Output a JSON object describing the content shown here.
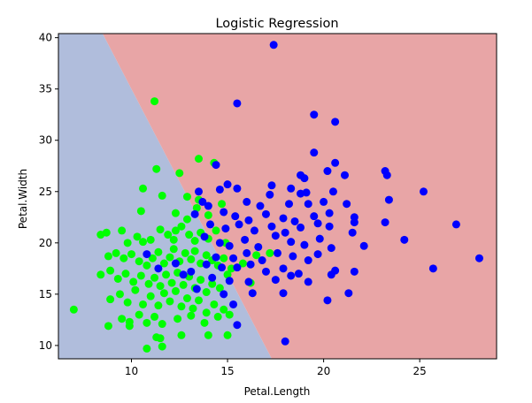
{
  "chart_data": {
    "type": "scatter",
    "title": "Logistic Regression",
    "xlabel": "Petal.Length",
    "ylabel": "Petal.Width",
    "xlim": [
      6.2,
      29.0
    ],
    "ylim": [
      8.7,
      40.4
    ],
    "xticks": [
      "10",
      "15",
      "20",
      "25"
    ],
    "yticks": [
      "10",
      "15",
      "20",
      "25",
      "30",
      "35",
      "40"
    ],
    "grid": false,
    "legend": "none",
    "decision_boundary": {
      "points": [
        [
          8.5,
          40.4
        ],
        [
          17.3,
          8.7
        ]
      ],
      "region_colors": {
        "left": "#b0bddc",
        "right": "#e8a5a6"
      }
    },
    "series": [
      {
        "color": "#00ff00",
        "points": [
          [
            11.2,
            33.8
          ],
          [
            11.3,
            27.2
          ],
          [
            12.5,
            26.8
          ],
          [
            13.5,
            28.2
          ],
          [
            14.3,
            27.8
          ],
          [
            10.6,
            25.3
          ],
          [
            11.6,
            24.6
          ],
          [
            12.9,
            24.5
          ],
          [
            10.5,
            23.1
          ],
          [
            12.3,
            22.9
          ],
          [
            12.9,
            22.3
          ],
          [
            13.4,
            23.4
          ],
          [
            13.5,
            24.2
          ],
          [
            14.0,
            22.7
          ],
          [
            14.7,
            23.8
          ],
          [
            8.4,
            20.8
          ],
          [
            8.7,
            21.0
          ],
          [
            9.5,
            21.2
          ],
          [
            9.8,
            20.0
          ],
          [
            10.3,
            20.6
          ],
          [
            10.6,
            20.1
          ],
          [
            11.0,
            20.3
          ],
          [
            11.5,
            21.3
          ],
          [
            11.9,
            20.8
          ],
          [
            12.3,
            21.2
          ],
          [
            12.6,
            21.6
          ],
          [
            12.2,
            20.3
          ],
          [
            13.0,
            20.8
          ],
          [
            13.3,
            20.2
          ],
          [
            13.6,
            21.0
          ],
          [
            14.0,
            20.4
          ],
          [
            14.4,
            21.2
          ],
          [
            14.9,
            20.0
          ],
          [
            8.8,
            18.7
          ],
          [
            9.2,
            19.0
          ],
          [
            9.6,
            18.5
          ],
          [
            10.0,
            18.9
          ],
          [
            10.4,
            18.2
          ],
          [
            10.8,
            17.8
          ],
          [
            11.1,
            18.5
          ],
          [
            11.4,
            19.1
          ],
          [
            11.7,
            18.0
          ],
          [
            12.0,
            18.6
          ],
          [
            12.2,
            19.4
          ],
          [
            12.5,
            18.2
          ],
          [
            12.8,
            19.0
          ],
          [
            13.1,
            18.4
          ],
          [
            13.3,
            19.2
          ],
          [
            13.6,
            18.0
          ],
          [
            13.9,
            18.8
          ],
          [
            14.2,
            18.3
          ],
          [
            14.5,
            17.8
          ],
          [
            14.8,
            18.5
          ],
          [
            15.2,
            17.5
          ],
          [
            15.8,
            18.0
          ],
          [
            16.5,
            18.8
          ],
          [
            17.2,
            19.0
          ],
          [
            8.4,
            16.9
          ],
          [
            8.9,
            17.3
          ],
          [
            9.3,
            16.5
          ],
          [
            9.7,
            17.0
          ],
          [
            10.1,
            16.2
          ],
          [
            10.5,
            16.8
          ],
          [
            10.9,
            16.0
          ],
          [
            11.2,
            16.6
          ],
          [
            11.5,
            15.8
          ],
          [
            11.8,
            16.9
          ],
          [
            12.1,
            16.1
          ],
          [
            12.4,
            17.1
          ],
          [
            12.7,
            15.9
          ],
          [
            13.0,
            16.7
          ],
          [
            13.3,
            15.6
          ],
          [
            13.6,
            16.4
          ],
          [
            13.9,
            15.2
          ],
          [
            14.2,
            16.0
          ],
          [
            14.6,
            15.6
          ],
          [
            15.0,
            16.9
          ],
          [
            16.2,
            16.1
          ],
          [
            8.9,
            14.5
          ],
          [
            9.4,
            15.0
          ],
          [
            9.8,
            14.2
          ],
          [
            10.2,
            15.4
          ],
          [
            10.6,
            14.0
          ],
          [
            11.0,
            14.8
          ],
          [
            11.4,
            13.9
          ],
          [
            11.7,
            15.1
          ],
          [
            12.0,
            14.3
          ],
          [
            12.3,
            15.3
          ],
          [
            12.6,
            13.8
          ],
          [
            12.9,
            14.6
          ],
          [
            13.2,
            13.6
          ],
          [
            13.5,
            14.4
          ],
          [
            13.9,
            13.2
          ],
          [
            14.3,
            14.0
          ],
          [
            14.8,
            13.5
          ],
          [
            15.1,
            13.0
          ],
          [
            7.0,
            13.5
          ],
          [
            8.8,
            11.9
          ],
          [
            9.5,
            12.6
          ],
          [
            9.9,
            12.3
          ],
          [
            10.4,
            13.0
          ],
          [
            10.8,
            12.2
          ],
          [
            11.2,
            12.8
          ],
          [
            11.6,
            12.1
          ],
          [
            12.4,
            12.6
          ],
          [
            13.1,
            12.9
          ],
          [
            13.8,
            12.2
          ],
          [
            14.5,
            12.8
          ],
          [
            9.9,
            11.9
          ],
          [
            11.3,
            10.8
          ],
          [
            11.5,
            10.7
          ],
          [
            12.6,
            11.0
          ],
          [
            14.0,
            11.0
          ],
          [
            10.8,
            9.7
          ],
          [
            11.6,
            9.9
          ],
          [
            15.0,
            11.0
          ]
        ]
      },
      {
        "color": "#0000ff",
        "points": [
          [
            17.4,
            39.3
          ],
          [
            15.5,
            33.6
          ],
          [
            19.5,
            32.5
          ],
          [
            20.6,
            31.8
          ],
          [
            19.5,
            28.8
          ],
          [
            14.4,
            27.6
          ],
          [
            20.6,
            27.8
          ],
          [
            21.1,
            26.6
          ],
          [
            20.2,
            27.0
          ],
          [
            23.2,
            27.0
          ],
          [
            23.3,
            26.6
          ],
          [
            18.8,
            26.6
          ],
          [
            19.0,
            26.3
          ],
          [
            15.0,
            25.7
          ],
          [
            14.6,
            25.2
          ],
          [
            15.5,
            25.3
          ],
          [
            17.3,
            25.6
          ],
          [
            18.3,
            25.3
          ],
          [
            18.8,
            24.8
          ],
          [
            19.1,
            24.9
          ],
          [
            20.5,
            25.0
          ],
          [
            25.2,
            25.0
          ],
          [
            13.5,
            25.0
          ],
          [
            13.7,
            24.0
          ],
          [
            14.0,
            23.6
          ],
          [
            16.0,
            24.0
          ],
          [
            16.7,
            23.6
          ],
          [
            17.2,
            24.7
          ],
          [
            18.2,
            23.8
          ],
          [
            19.2,
            23.8
          ],
          [
            20.0,
            24.0
          ],
          [
            21.2,
            23.8
          ],
          [
            21.6,
            22.5
          ],
          [
            23.4,
            24.2
          ],
          [
            13.3,
            22.8
          ],
          [
            14.8,
            23.0
          ],
          [
            15.4,
            22.6
          ],
          [
            16.1,
            22.2
          ],
          [
            17.0,
            22.8
          ],
          [
            17.9,
            22.4
          ],
          [
            18.5,
            22.1
          ],
          [
            19.5,
            22.6
          ],
          [
            20.3,
            22.9
          ],
          [
            21.6,
            22.0
          ],
          [
            23.2,
            22.0
          ],
          [
            14.1,
            21.8
          ],
          [
            14.9,
            21.4
          ],
          [
            15.6,
            21.8
          ],
          [
            16.4,
            21.2
          ],
          [
            17.3,
            21.6
          ],
          [
            18.0,
            21.0
          ],
          [
            18.8,
            21.5
          ],
          [
            19.7,
            21.9
          ],
          [
            20.3,
            21.6
          ],
          [
            21.5,
            21.0
          ],
          [
            26.9,
            21.8
          ],
          [
            13.8,
            20.6
          ],
          [
            14.6,
            20.0
          ],
          [
            15.1,
            19.7
          ],
          [
            15.9,
            20.3
          ],
          [
            16.6,
            19.6
          ],
          [
            17.5,
            20.7
          ],
          [
            18.3,
            20.1
          ],
          [
            19.0,
            19.8
          ],
          [
            19.8,
            20.4
          ],
          [
            20.4,
            19.5
          ],
          [
            22.1,
            19.7
          ],
          [
            24.2,
            20.3
          ],
          [
            14.4,
            18.6
          ],
          [
            15.3,
            18.5
          ],
          [
            16.0,
            19.0
          ],
          [
            16.8,
            18.3
          ],
          [
            17.6,
            19.0
          ],
          [
            18.4,
            18.7
          ],
          [
            19.2,
            18.3
          ],
          [
            19.7,
            18.9
          ],
          [
            28.1,
            18.5
          ],
          [
            13.9,
            17.9
          ],
          [
            14.7,
            17.6
          ],
          [
            15.5,
            17.6
          ],
          [
            16.2,
            17.9
          ],
          [
            17.0,
            17.2
          ],
          [
            17.9,
            17.5
          ],
          [
            18.7,
            17.0
          ],
          [
            20.6,
            17.3
          ],
          [
            21.6,
            17.2
          ],
          [
            25.7,
            17.5
          ],
          [
            14.2,
            16.6
          ],
          [
            15.1,
            16.3
          ],
          [
            16.1,
            16.2
          ],
          [
            17.5,
            16.4
          ],
          [
            18.3,
            16.8
          ],
          [
            19.2,
            16.2
          ],
          [
            20.4,
            16.9
          ],
          [
            14.8,
            15.0
          ],
          [
            16.3,
            15.1
          ],
          [
            17.9,
            15.1
          ],
          [
            21.3,
            15.1
          ],
          [
            15.3,
            14.0
          ],
          [
            20.2,
            14.4
          ],
          [
            15.5,
            12.0
          ],
          [
            18.0,
            10.4
          ],
          [
            12.7,
            16.9
          ],
          [
            12.3,
            18.0
          ],
          [
            11.4,
            17.5
          ],
          [
            10.8,
            18.9
          ],
          [
            13.4,
            15.5
          ],
          [
            13.1,
            17.2
          ]
        ]
      }
    ]
  }
}
